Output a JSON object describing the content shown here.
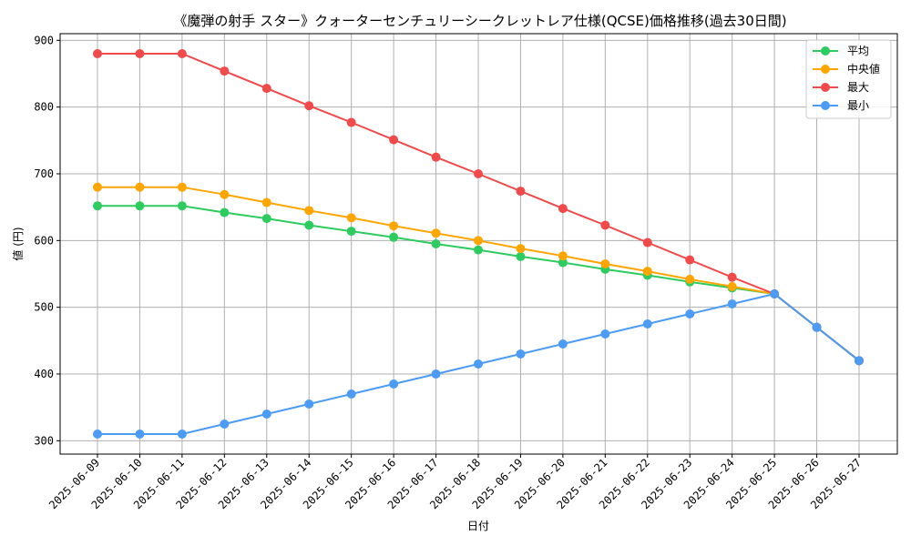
{
  "chart_data": {
    "type": "line",
    "title": "《魔弾の射手 スター》クォーターセンチュリーシークレットレア仕様(QCSE)価格推移(過去30日間)",
    "xlabel": "日付",
    "ylabel": "値 (円)",
    "categories": [
      "2025-06-09",
      "2025-06-10",
      "2025-06-11",
      "2025-06-12",
      "2025-06-13",
      "2025-06-14",
      "2025-06-15",
      "2025-06-16",
      "2025-06-17",
      "2025-06-18",
      "2025-06-19",
      "2025-06-20",
      "2025-06-21",
      "2025-06-22",
      "2025-06-23",
      "2025-06-24",
      "2025-06-25",
      "2025-06-26",
      "2025-06-27"
    ],
    "ylim": [
      280,
      910
    ],
    "yticks": [
      300,
      400,
      500,
      600,
      700,
      800,
      900
    ],
    "grid": true,
    "legend_position": "top-right",
    "series": [
      {
        "name": "平均",
        "color": "#2ecc5f",
        "values": [
          652,
          652,
          652,
          642,
          633,
          623,
          614,
          605,
          595,
          586,
          576,
          567,
          557,
          548,
          538,
          529,
          520,
          470,
          420
        ]
      },
      {
        "name": "中央値",
        "color": "#ffa500",
        "values": [
          680,
          680,
          680,
          669,
          657,
          645,
          634,
          622,
          611,
          600,
          588,
          577,
          565,
          554,
          542,
          531,
          520,
          470,
          420
        ]
      },
      {
        "name": "最大",
        "color": "#f04a4a",
        "values": [
          880,
          880,
          880,
          854,
          828,
          802,
          777,
          751,
          725,
          700,
          674,
          648,
          623,
          597,
          571,
          545,
          520,
          470,
          420
        ]
      },
      {
        "name": "最小",
        "color": "#4c9bf5",
        "values": [
          310,
          310,
          310,
          325,
          340,
          355,
          370,
          385,
          400,
          415,
          430,
          445,
          460,
          475,
          490,
          505,
          520,
          470,
          420
        ]
      }
    ]
  }
}
